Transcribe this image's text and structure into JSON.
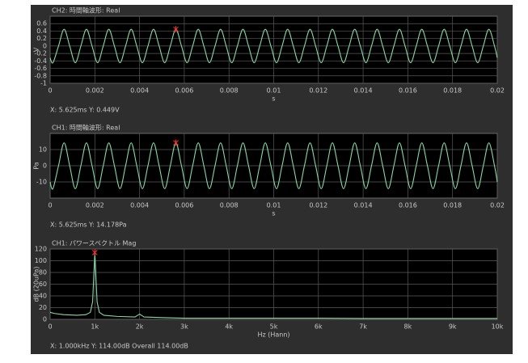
{
  "chart_data": [
    {
      "type": "line",
      "title": "CH2: 時間軸波形: Real",
      "xlabel": "s",
      "ylabel": "V",
      "color": "#86d8a8",
      "x": [
        0,
        0.000125,
        0.000375,
        0.000625,
        0.000875,
        0.001125,
        0.001375,
        0.001625,
        0.001875,
        0.002125,
        0.002375,
        0.002625,
        0.002875,
        0.003125,
        0.003375,
        0.003625,
        0.003875,
        0.004125,
        0.004375,
        0.004625,
        0.004875,
        0.005125,
        0.005375,
        0.005625,
        0.005875,
        0.006125,
        0.006375,
        0.006625,
        0.006875,
        0.007125,
        0.007375,
        0.007625,
        0.007875,
        0.008125,
        0.008375,
        0.008625,
        0.008875,
        0.009125,
        0.009375,
        0.009625,
        0.009875,
        0.010125,
        0.010375,
        0.010625,
        0.010875,
        0.011125,
        0.011375,
        0.011625,
        0.011875,
        0.012125,
        0.012375,
        0.012625,
        0.012875,
        0.013125,
        0.013375,
        0.013625,
        0.013875,
        0.014125,
        0.014375,
        0.014625,
        0.014875,
        0.015125,
        0.015375,
        0.015625,
        0.015875,
        0.016125,
        0.016375,
        0.016625,
        0.016875,
        0.017125,
        0.017375,
        0.017625,
        0.017875,
        0.018125,
        0.018375,
        0.018625,
        0.018875,
        0.019125,
        0.019375,
        0.019625,
        0.019875,
        0.02
      ],
      "values": [
        -0.317,
        -0.449,
        0,
        0.449,
        0,
        -0.449,
        0,
        0.449,
        0,
        -0.449,
        0,
        0.449,
        0,
        -0.449,
        0,
        0.449,
        0,
        -0.449,
        0,
        0.449,
        0,
        -0.449,
        0,
        0.449,
        0,
        -0.449,
        0,
        0.449,
        0,
        -0.449,
        0,
        0.449,
        0,
        -0.449,
        0,
        0.449,
        0,
        -0.449,
        0,
        0.449,
        0,
        -0.449,
        0,
        0.449,
        0,
        -0.449,
        0,
        0.449,
        0,
        -0.449,
        0,
        0.449,
        0,
        -0.449,
        0,
        0.449,
        0,
        -0.449,
        0,
        0.449,
        0,
        -0.449,
        0,
        0.449,
        0,
        -0.449,
        0,
        0.449,
        0,
        -0.449,
        0,
        0.449,
        0,
        -0.449,
        0,
        0.449,
        0,
        -0.449,
        0,
        0.449,
        0,
        -0.317
      ],
      "xlim": [
        0,
        0.02
      ],
      "xticks": [
        0,
        0.002,
        0.004,
        0.006,
        0.008,
        0.01,
        0.012,
        0.014,
        0.016,
        0.018,
        0.02
      ],
      "ylim": [
        -1,
        0.8
      ],
      "yticks": [
        -1,
        -0.8,
        -0.6,
        -0.4,
        -0.2,
        0,
        0.2,
        0.4,
        0.6
      ],
      "grid": true,
      "marker": {
        "x": 0.005625,
        "y": 0.449,
        "color": "#ff3030"
      },
      "readout": "X: 5.625ms Y: 0.449V"
    },
    {
      "type": "line",
      "title": "CH1: 時間軸波形: Real",
      "xlabel": "s",
      "ylabel": "Pa",
      "color": "#86d8a8",
      "x": [
        0,
        0.000125,
        0.000375,
        0.000625,
        0.000875,
        0.001125,
        0.001375,
        0.001625,
        0.001875,
        0.002125,
        0.002375,
        0.002625,
        0.002875,
        0.003125,
        0.003375,
        0.003625,
        0.003875,
        0.004125,
        0.004375,
        0.004625,
        0.004875,
        0.005125,
        0.005375,
        0.005625,
        0.005875,
        0.006125,
        0.006375,
        0.006625,
        0.006875,
        0.007125,
        0.007375,
        0.007625,
        0.007875,
        0.008125,
        0.008375,
        0.008625,
        0.008875,
        0.009125,
        0.009375,
        0.009625,
        0.009875,
        0.010125,
        0.010375,
        0.010625,
        0.010875,
        0.011125,
        0.011375,
        0.011625,
        0.011875,
        0.012125,
        0.012375,
        0.012625,
        0.012875,
        0.013125,
        0.013375,
        0.013625,
        0.013875,
        0.014125,
        0.014375,
        0.014625,
        0.014875,
        0.015125,
        0.015375,
        0.015625,
        0.015875,
        0.016125,
        0.016375,
        0.016625,
        0.016875,
        0.017125,
        0.017375,
        0.017625,
        0.017875,
        0.018125,
        0.018375,
        0.018625,
        0.018875,
        0.019125,
        0.019375,
        0.019625,
        0.019875,
        0.02
      ],
      "values": [
        -10.025,
        -14.178,
        0,
        14.178,
        0,
        -14.178,
        0,
        14.178,
        0,
        -14.178,
        0,
        14.178,
        0,
        -14.178,
        0,
        14.178,
        0,
        -14.178,
        0,
        14.178,
        0,
        -14.178,
        0,
        14.178,
        0,
        -14.178,
        0,
        14.178,
        0,
        -14.178,
        0,
        14.178,
        0,
        -14.178,
        0,
        14.178,
        0,
        -14.178,
        0,
        14.178,
        0,
        -14.178,
        0,
        14.178,
        0,
        -14.178,
        0,
        14.178,
        0,
        -14.178,
        0,
        14.178,
        0,
        -14.178,
        0,
        14.178,
        0,
        -14.178,
        0,
        14.178,
        0,
        -14.178,
        0,
        14.178,
        0,
        -14.178,
        0,
        14.178,
        0,
        -14.178,
        0,
        14.178,
        0,
        -14.178,
        0,
        14.178,
        0,
        -14.178,
        0,
        14.178,
        0,
        -10.025
      ],
      "xlim": [
        0,
        0.02
      ],
      "xticks": [
        0,
        0.002,
        0.004,
        0.006,
        0.008,
        0.01,
        0.012,
        0.014,
        0.016,
        0.018,
        0.02
      ],
      "ylim": [
        -20,
        20
      ],
      "yticks": [
        -10,
        0,
        10
      ],
      "grid": true,
      "marker": {
        "x": 0.005625,
        "y": 14.178,
        "color": "#ff3030"
      },
      "readout": "X: 5.625ms Y: 14.178Pa"
    },
    {
      "type": "spectrum",
      "title": "CH1: パワースペクトル Mag",
      "xlabel": "Hz (Hann)",
      "ylabel": "dB (20uPa)",
      "color": "#86d8a8",
      "x": [
        0,
        100,
        300,
        600,
        800,
        900,
        950,
        1000,
        1050,
        1100,
        1200,
        1500,
        1900,
        2000,
        2100,
        2500,
        3000,
        4000,
        5000,
        6000,
        7000,
        8000,
        9000,
        10000
      ],
      "values": [
        12,
        10,
        8,
        7,
        8,
        12,
        30,
        114,
        30,
        12,
        7,
        5,
        4,
        9,
        4,
        3,
        2,
        2,
        2,
        2,
        1.5,
        1.5,
        1.5,
        1.5
      ],
      "xlim": [
        0,
        10000
      ],
      "xticks": [
        0,
        {
          "value": 1000,
          "label": "1k"
        },
        {
          "value": 2000,
          "label": "2k"
        },
        {
          "value": 3000,
          "label": "3k"
        },
        {
          "value": 4000,
          "label": "4k"
        },
        {
          "value": 5000,
          "label": "5k"
        },
        {
          "value": 6000,
          "label": "6k"
        },
        {
          "value": 7000,
          "label": "7k"
        },
        {
          "value": 8000,
          "label": "8k"
        },
        {
          "value": 9000,
          "label": "9k"
        },
        {
          "value": 10000,
          "label": "10k"
        }
      ],
      "ylim": [
        0,
        120
      ],
      "yticks": [
        0,
        20,
        40,
        60,
        80,
        100,
        120
      ],
      "grid": true,
      "marker": {
        "x": 1000,
        "y": 114,
        "color": "#ff3030"
      },
      "readout": "X: 1.000kHz Y: 114.00dB   Overall 114.00dB"
    }
  ]
}
